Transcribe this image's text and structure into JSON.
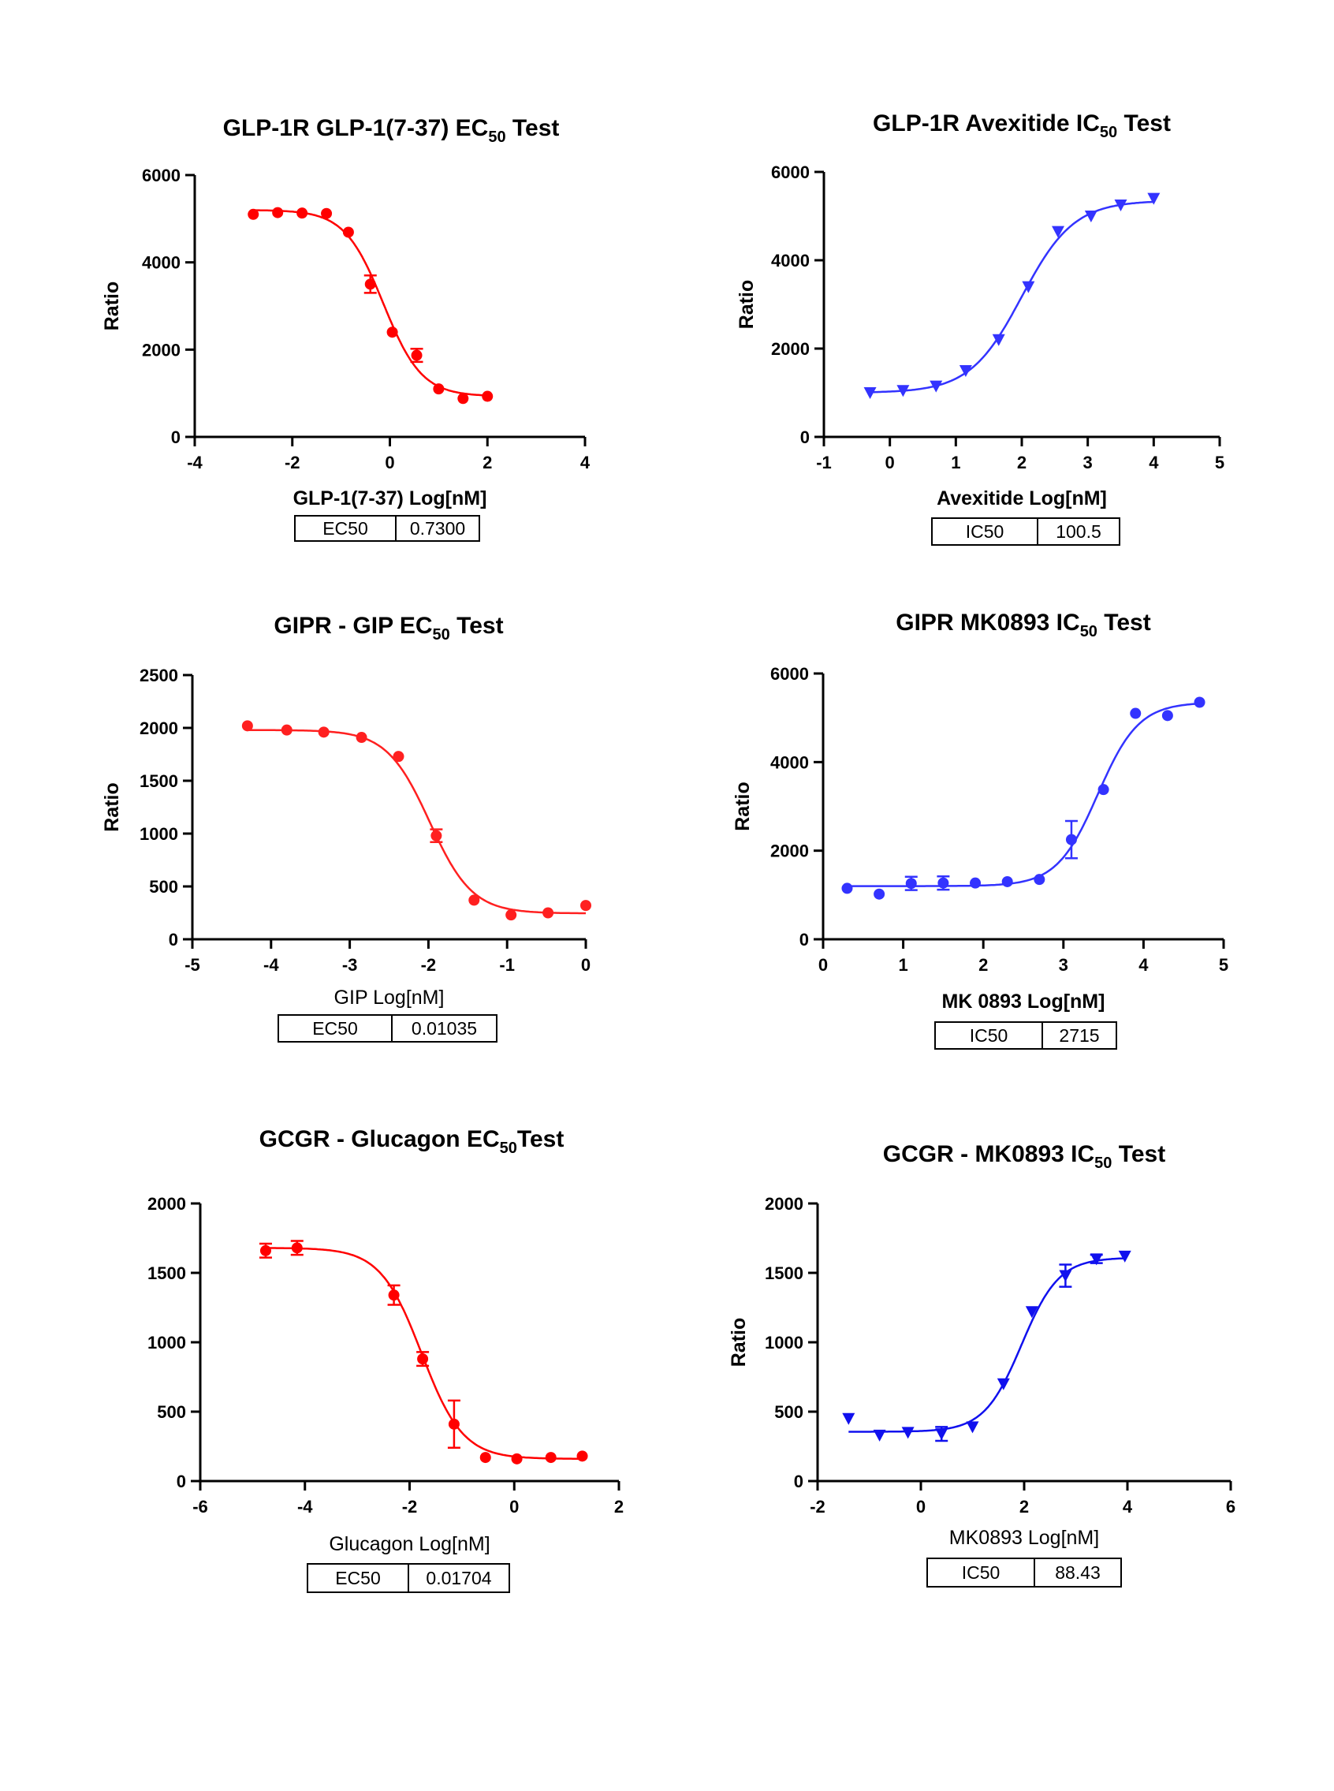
{
  "charts": [
    {
      "title": "GLP-1R GLP-1(7-37) EC",
      "title_sub": "50",
      "title_suffix": " Test",
      "xlabel": "GLP-1(7-37)  Log[nM]",
      "xlabel_bold": true,
      "ylabel": "Ratio",
      "color": "#ff0000",
      "marker": "circle",
      "metric_label": "EC50",
      "metric_value": "0.7300",
      "chart_data": {
        "type": "scatter",
        "x_ticks": [
          -4,
          -2,
          0,
          2,
          4
        ],
        "y_ticks": [
          0,
          2000,
          4000,
          6000
        ],
        "xlim": [
          -4,
          4
        ],
        "ylim": [
          0,
          6000
        ],
        "fit": {
          "bottom": 930,
          "top": 5200,
          "logEC50": -0.137,
          "hill": -1.1
        },
        "points": [
          {
            "x": -2.8,
            "y": 5100
          },
          {
            "x": -2.3,
            "y": 5140
          },
          {
            "x": -1.8,
            "y": 5130
          },
          {
            "x": -1.3,
            "y": 5120
          },
          {
            "x": -0.85,
            "y": 4690
          },
          {
            "x": -0.4,
            "y": 3500,
            "err": 200
          },
          {
            "x": 0.05,
            "y": 2400
          },
          {
            "x": 0.55,
            "y": 1870,
            "err": 150
          },
          {
            "x": 1.0,
            "y": 1100
          },
          {
            "x": 1.5,
            "y": 880
          },
          {
            "x": 2.0,
            "y": 930
          }
        ]
      }
    },
    {
      "title": "GLP-1R  Avexitide IC",
      "title_sub": "50",
      "title_suffix": " Test",
      "xlabel": "Avexitide Log[nM]",
      "xlabel_bold": true,
      "ylabel": "Ratio",
      "color": "#3333ff",
      "marker": "triangle",
      "metric_label": "IC50",
      "metric_value": "100.5",
      "chart_data": {
        "type": "scatter",
        "x_ticks": [
          -1,
          0,
          1,
          2,
          3,
          4,
          5
        ],
        "y_ticks": [
          0,
          2000,
          4000,
          6000
        ],
        "xlim": [
          -1,
          5
        ],
        "ylim": [
          0,
          6000
        ],
        "fit": {
          "bottom": 1000,
          "top": 5350,
          "logEC50": 2.0,
          "hill": 1.1
        },
        "points": [
          {
            "x": -0.3,
            "y": 1000
          },
          {
            "x": 0.2,
            "y": 1050
          },
          {
            "x": 0.7,
            "y": 1150
          },
          {
            "x": 1.15,
            "y": 1500
          },
          {
            "x": 1.65,
            "y": 2200
          },
          {
            "x": 2.1,
            "y": 3400
          },
          {
            "x": 2.55,
            "y": 4650
          },
          {
            "x": 3.05,
            "y": 5000
          },
          {
            "x": 3.5,
            "y": 5250
          },
          {
            "x": 4.0,
            "y": 5400
          }
        ]
      }
    },
    {
      "title": "GIPR - GIP EC",
      "title_sub": "50",
      "title_suffix": " Test",
      "xlabel": "GIP Log[nM]",
      "xlabel_bold": false,
      "ylabel": "Ratio",
      "color": "#ff2020",
      "marker": "circle",
      "metric_label": "EC50",
      "metric_value": "0.01035",
      "chart_data": {
        "type": "scatter",
        "x_ticks": [
          -5,
          -4,
          -3,
          -2,
          -1,
          0
        ],
        "y_ticks": [
          0,
          500,
          1000,
          1500,
          2000,
          2500
        ],
        "xlim": [
          -5,
          0
        ],
        "ylim": [
          0,
          2500
        ],
        "fit": {
          "bottom": 245,
          "top": 1980,
          "logEC50": -1.985,
          "hill": -1.6
        },
        "points": [
          {
            "x": -4.3,
            "y": 2020
          },
          {
            "x": -3.8,
            "y": 1980
          },
          {
            "x": -3.33,
            "y": 1960
          },
          {
            "x": -2.85,
            "y": 1910
          },
          {
            "x": -2.38,
            "y": 1730
          },
          {
            "x": -1.9,
            "y": 980,
            "err": 60
          },
          {
            "x": -1.42,
            "y": 370
          },
          {
            "x": -0.95,
            "y": 230
          },
          {
            "x": -0.48,
            "y": 250
          },
          {
            "x": 0.0,
            "y": 320
          }
        ]
      }
    },
    {
      "title": "GIPR MK0893 IC",
      "title_sub": "50",
      "title_suffix": " Test",
      "xlabel": "MK 0893 Log[nM]",
      "xlabel_bold": true,
      "ylabel": "Ratio",
      "color": "#3333ff",
      "marker": "circle",
      "metric_label": "IC50",
      "metric_value": "2715",
      "chart_data": {
        "type": "scatter",
        "x_ticks": [
          0,
          1,
          2,
          3,
          4,
          5
        ],
        "y_ticks": [
          0,
          2000,
          4000,
          6000
        ],
        "xlim": [
          0,
          5
        ],
        "ylim": [
          0,
          6000
        ],
        "fit": {
          "bottom": 1200,
          "top": 5350,
          "logEC50": 3.43,
          "hill": 1.7
        },
        "points": [
          {
            "x": 0.3,
            "y": 1150
          },
          {
            "x": 0.7,
            "y": 1020
          },
          {
            "x": 1.1,
            "y": 1260,
            "err": 150
          },
          {
            "x": 1.5,
            "y": 1270,
            "err": 150
          },
          {
            "x": 1.9,
            "y": 1270
          },
          {
            "x": 2.3,
            "y": 1300
          },
          {
            "x": 2.7,
            "y": 1350
          },
          {
            "x": 3.1,
            "y": 2250,
            "err": 420
          },
          {
            "x": 3.5,
            "y": 3380
          },
          {
            "x": 3.9,
            "y": 5100
          },
          {
            "x": 4.3,
            "y": 5050
          },
          {
            "x": 4.7,
            "y": 5350
          }
        ]
      }
    },
    {
      "title": "GCGR - Glucagon EC",
      "title_sub": "50",
      "title_suffix": "Test",
      "xlabel": "Glucagon Log[nM]",
      "xlabel_bold": false,
      "ylabel": "",
      "color": "#ff0000",
      "marker": "circle",
      "metric_label": "EC50",
      "metric_value": "0.01704",
      "chart_data": {
        "type": "scatter",
        "x_ticks": [
          -6,
          -4,
          -2,
          0,
          2
        ],
        "y_ticks": [
          0,
          500,
          1000,
          1500,
          2000
        ],
        "xlim": [
          -6,
          2
        ],
        "ylim": [
          0,
          2000
        ],
        "fit": {
          "bottom": 160,
          "top": 1680,
          "logEC50": -1.77,
          "hill": -1.1
        },
        "points": [
          {
            "x": -4.75,
            "y": 1660,
            "err": 50
          },
          {
            "x": -4.15,
            "y": 1680,
            "err": 50
          },
          {
            "x": -2.3,
            "y": 1340,
            "err": 70
          },
          {
            "x": -1.75,
            "y": 880,
            "err": 50
          },
          {
            "x": -1.15,
            "y": 410,
            "err": 170
          },
          {
            "x": -0.55,
            "y": 170
          },
          {
            "x": 0.05,
            "y": 160
          },
          {
            "x": 0.7,
            "y": 170
          },
          {
            "x": 1.3,
            "y": 180
          }
        ]
      }
    },
    {
      "title": "GCGR - MK0893 IC",
      "title_sub": "50",
      "title_suffix": " Test",
      "xlabel": "MK0893  Log[nM]",
      "xlabel_bold": false,
      "ylabel": "Ratio",
      "color": "#1010ee",
      "marker": "triangle",
      "metric_label": "IC50",
      "metric_value": "88.43",
      "chart_data": {
        "type": "scatter",
        "x_ticks": [
          -2,
          0,
          2,
          4,
          6
        ],
        "y_ticks": [
          0,
          500,
          1000,
          1500,
          2000
        ],
        "xlim": [
          -2,
          6
        ],
        "ylim": [
          0,
          2000
        ],
        "fit": {
          "bottom": 355,
          "top": 1610,
          "logEC50": 1.95,
          "hill": 1.2
        },
        "points": [
          {
            "x": -1.4,
            "y": 450
          },
          {
            "x": -0.8,
            "y": 330
          },
          {
            "x": -0.25,
            "y": 350
          },
          {
            "x": 0.4,
            "y": 340,
            "err": 50
          },
          {
            "x": 1.0,
            "y": 390
          },
          {
            "x": 1.6,
            "y": 700
          },
          {
            "x": 2.15,
            "y": 1220
          },
          {
            "x": 2.8,
            "y": 1480,
            "err": 80
          },
          {
            "x": 3.4,
            "y": 1600,
            "err": 30
          },
          {
            "x": 3.95,
            "y": 1620
          }
        ]
      }
    }
  ]
}
